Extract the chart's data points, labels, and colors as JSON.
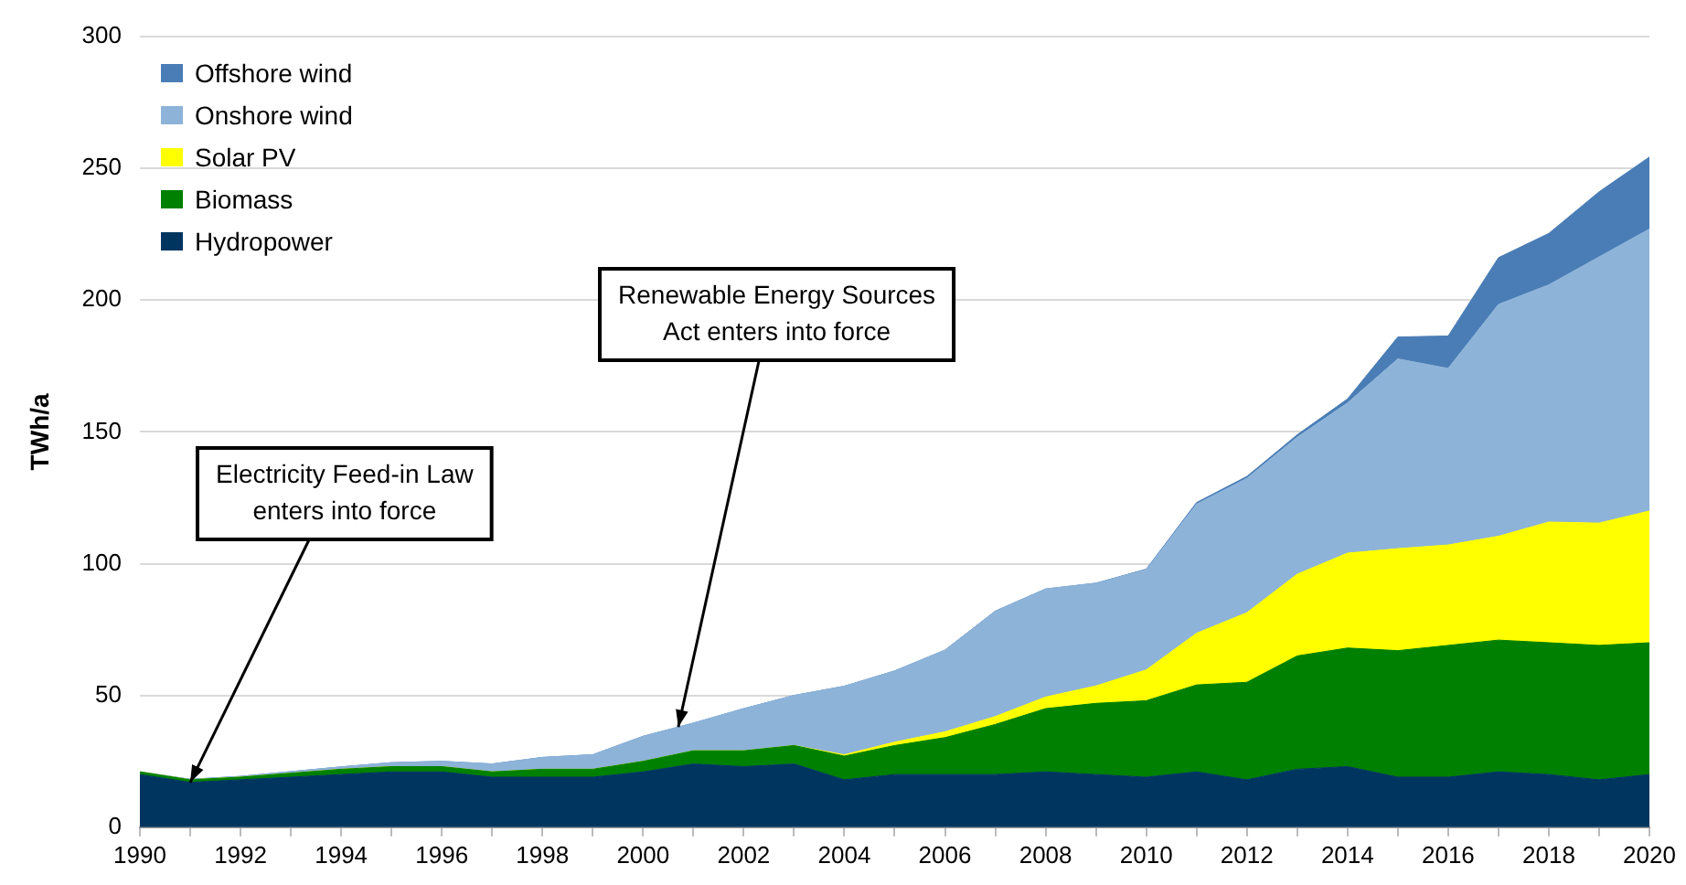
{
  "chart_data": {
    "type": "area",
    "stacked": true,
    "ylabel": "TWh/a",
    "x": [
      1990,
      1991,
      1992,
      1993,
      1994,
      1995,
      1996,
      1997,
      1998,
      1999,
      2000,
      2001,
      2002,
      2003,
      2004,
      2005,
      2006,
      2007,
      2008,
      2009,
      2010,
      2011,
      2012,
      2013,
      2014,
      2015,
      2016,
      2017,
      2018,
      2019,
      2020
    ],
    "series": [
      {
        "name": "Hydropower",
        "color": "#003560",
        "values": [
          20,
          17,
          18,
          19,
          20,
          21,
          21,
          19,
          19,
          19,
          21,
          24,
          23,
          24,
          18,
          20,
          20,
          20,
          21,
          20,
          19,
          21,
          18,
          22,
          23,
          19,
          19,
          21,
          20,
          18,
          20
        ]
      },
      {
        "name": "Biomass",
        "color": "#008000",
        "values": [
          1,
          1,
          1,
          1.5,
          2,
          2,
          2,
          2,
          3,
          3,
          4,
          5,
          6,
          7,
          9,
          11,
          14,
          19,
          24,
          27,
          29,
          33,
          37,
          43,
          45,
          48,
          50,
          50,
          50,
          51,
          50
        ]
      },
      {
        "name": "Solar PV",
        "color": "#ffff00",
        "values": [
          0,
          0,
          0,
          0,
          0,
          0,
          0,
          0,
          0,
          0,
          0,
          0,
          0,
          0,
          0.5,
          1.3,
          2.2,
          3,
          4.4,
          6.6,
          11.7,
          19.6,
          26.4,
          31,
          36,
          38.7,
          38.1,
          39.4,
          45.8,
          46.4,
          50
        ]
      },
      {
        "name": "Onshore wind",
        "color": "#8db3d9",
        "values": [
          0,
          0.2,
          0.3,
          0.6,
          0.9,
          1.5,
          2,
          3,
          4.5,
          5.5,
          9.5,
          10.5,
          16,
          19,
          26,
          27,
          31,
          40,
          41,
          39,
          38,
          49,
          51,
          52,
          57,
          72,
          67,
          88,
          90,
          101,
          107
        ]
      },
      {
        "name": "Offshore wind",
        "color": "#4a7db5",
        "values": [
          0,
          0,
          0,
          0,
          0,
          0,
          0,
          0,
          0,
          0,
          0,
          0,
          0,
          0,
          0,
          0,
          0,
          0,
          0,
          0,
          0.2,
          0.6,
          0.7,
          0.9,
          1.5,
          8.3,
          12.3,
          17.7,
          19.5,
          24.7,
          27.3
        ]
      }
    ],
    "xlim": [
      1990,
      2020
    ],
    "xticks": [
      1990,
      {
        "value": 1991,
        "label": null
      },
      1992,
      {
        "value": 1993,
        "label": null
      },
      1994,
      {
        "value": 1995,
        "label": null
      },
      1996,
      {
        "value": 1997,
        "label": null
      },
      1998,
      {
        "value": 1999,
        "label": null
      },
      2000,
      {
        "value": 2001,
        "label": null
      },
      2002,
      {
        "value": 2003,
        "label": null
      },
      2004,
      {
        "value": 2005,
        "label": null
      },
      2006,
      {
        "value": 2007,
        "label": null
      },
      2008,
      {
        "value": 2009,
        "label": null
      },
      2010,
      {
        "value": 2011,
        "label": null
      },
      2012,
      {
        "value": 2013,
        "label": null
      },
      2014,
      {
        "value": 2015,
        "label": null
      },
      2016,
      {
        "value": 2017,
        "label": null
      },
      2018,
      {
        "value": 2019,
        "label": null
      },
      2020
    ],
    "ylim": [
      0,
      300
    ],
    "yticks": [
      0,
      50,
      100,
      150,
      200,
      250,
      300
    ],
    "grid": "y",
    "legend": "top left",
    "annotations": [
      {
        "text": "Electricity Feed-in Law\nenters into force",
        "x": 1991,
        "y": 17
      },
      {
        "text": "Renewable Energy Sources\nAct enters into force",
        "x": 2000.7,
        "y": 38
      }
    ]
  }
}
